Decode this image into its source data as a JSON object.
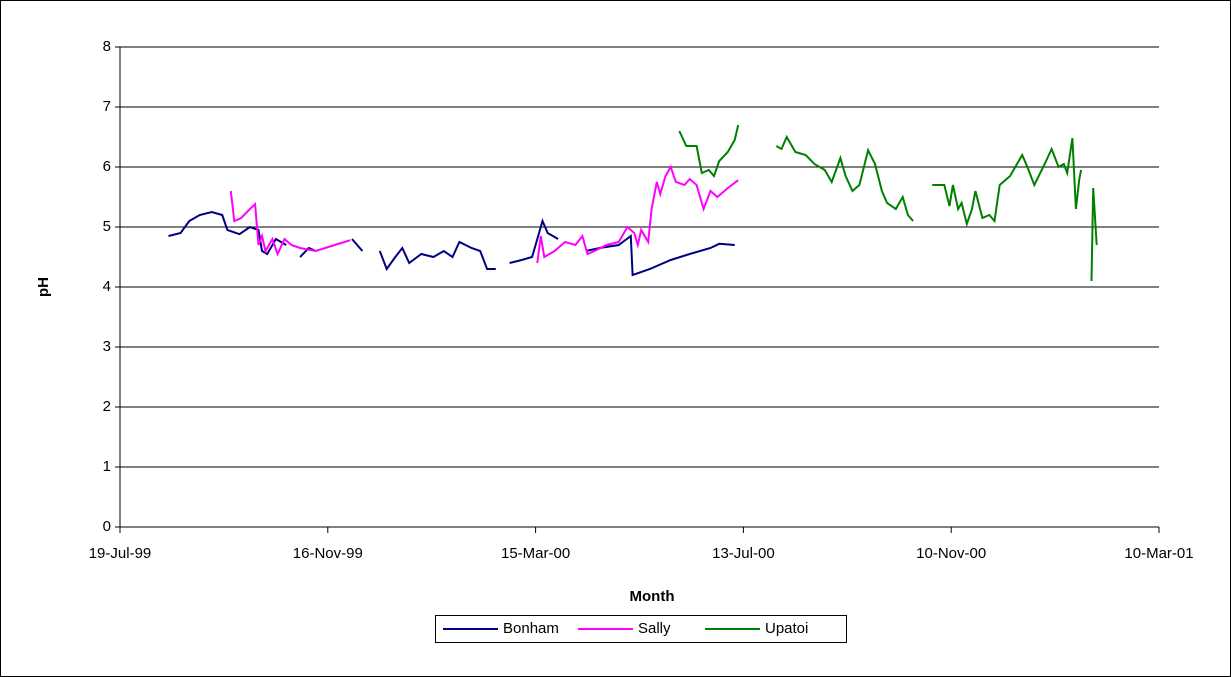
{
  "chart_data": {
    "type": "line",
    "x_label": "Month",
    "y_label": "pH",
    "xlim": [
      "1999-07-19",
      "2001-03-10"
    ],
    "xticks": [
      {
        "value": "1999-07-19",
        "label": "19-Jul-99"
      },
      {
        "value": "1999-11-16",
        "label": "16-Nov-99"
      },
      {
        "value": "2000-03-15",
        "label": "15-Mar-00"
      },
      {
        "value": "2000-07-13",
        "label": "13-Jul-00"
      },
      {
        "value": "2000-11-10",
        "label": "10-Nov-00"
      },
      {
        "value": "2001-03-10",
        "label": "10-Mar-01"
      }
    ],
    "ylim": [
      0,
      8
    ],
    "yticks": [
      0,
      1,
      2,
      3,
      4,
      5,
      6,
      7,
      8
    ],
    "grid": true,
    "legend": "bottom",
    "series": [
      {
        "name": "Bonham",
        "color": "#000080",
        "x": [
          "1999-08-16",
          "1999-08-23",
          "1999-08-28",
          "1999-09-03",
          "1999-09-10",
          "1999-09-16",
          "1999-09-19",
          "1999-09-26",
          "1999-10-02",
          "1999-10-07",
          "1999-10-09",
          "1999-10-12",
          "1999-10-17",
          "1999-10-23",
          null,
          "1999-10-31",
          "1999-11-05",
          "1999-11-09",
          null,
          "1999-11-30",
          "1999-12-06",
          null,
          "1999-12-16",
          "1999-12-20",
          "1999-12-25",
          "1999-12-29",
          "2000-01-02",
          "2000-01-09",
          "2000-01-16",
          "2000-01-22",
          "2000-01-27",
          "2000-01-31",
          "2000-02-07",
          "2000-02-12",
          "2000-02-16",
          "2000-02-21",
          null,
          "2000-02-29",
          "2000-03-07",
          "2000-03-13",
          "2000-03-16",
          "2000-03-19",
          "2000-03-22",
          "2000-03-28",
          null,
          "2000-04-13",
          "2000-04-21",
          "2000-05-02",
          "2000-05-09",
          "2000-05-10",
          "2000-05-20",
          "2000-06-01",
          "2000-06-12",
          "2000-06-24",
          "2000-06-29",
          "2000-07-08"
        ],
        "values": [
          4.85,
          4.9,
          5.1,
          5.2,
          5.25,
          5.2,
          4.95,
          4.88,
          5.0,
          4.95,
          4.6,
          4.55,
          4.8,
          4.7,
          null,
          4.5,
          4.65,
          4.6,
          null,
          4.8,
          4.6,
          null,
          4.6,
          4.3,
          4.5,
          4.65,
          4.4,
          4.55,
          4.5,
          4.6,
          4.5,
          4.75,
          4.65,
          4.6,
          4.3,
          4.3,
          null,
          4.4,
          4.45,
          4.5,
          4.8,
          5.1,
          4.9,
          4.8,
          null,
          4.6,
          4.65,
          4.7,
          4.85,
          4.2,
          4.3,
          4.45,
          4.55,
          4.65,
          4.72,
          4.7
        ]
      },
      {
        "name": "Sally",
        "color": "#ff00ff",
        "x": [
          "1999-09-21",
          "1999-09-23",
          "1999-09-27",
          "1999-10-02",
          "1999-10-05",
          "1999-10-07",
          "1999-10-09",
          "1999-10-11",
          "1999-10-15",
          "1999-10-18",
          "1999-10-22",
          "1999-10-26",
          "1999-10-31",
          "1999-11-09",
          "1999-11-20",
          "1999-11-29",
          null,
          "2000-03-16",
          "2000-03-18",
          "2000-03-20",
          "2000-03-26",
          "2000-04-01",
          "2000-04-07",
          "2000-04-11",
          "2000-04-14",
          "2000-04-18",
          "2000-04-25",
          "2000-05-02",
          "2000-05-07",
          "2000-05-11",
          "2000-05-13",
          "2000-05-15",
          "2000-05-19",
          "2000-05-21",
          "2000-05-24",
          "2000-05-26",
          "2000-05-29",
          "2000-06-01",
          "2000-06-04",
          "2000-06-09",
          "2000-06-12",
          "2000-06-16",
          "2000-06-20",
          "2000-06-24",
          "2000-06-28",
          "2000-07-04",
          "2000-07-10"
        ],
        "values": [
          5.6,
          5.1,
          5.15,
          5.3,
          5.38,
          4.7,
          4.85,
          4.6,
          4.8,
          4.55,
          4.8,
          4.7,
          4.65,
          4.6,
          4.7,
          4.78,
          null,
          4.4,
          4.85,
          4.5,
          4.6,
          4.75,
          4.7,
          4.85,
          4.55,
          4.6,
          4.7,
          4.75,
          5.0,
          4.9,
          4.7,
          4.95,
          4.75,
          5.3,
          5.75,
          5.55,
          5.85,
          6.0,
          5.75,
          5.7,
          5.8,
          5.7,
          5.3,
          5.6,
          5.5,
          5.65,
          5.78
        ]
      },
      {
        "name": "Upatoi",
        "color": "#008000",
        "x": [
          "2000-06-06",
          "2000-06-10",
          "2000-06-16",
          "2000-06-19",
          "2000-06-23",
          "2000-06-26",
          "2000-06-29",
          "2000-07-04",
          "2000-07-08",
          "2000-07-10",
          null,
          "2000-08-01",
          "2000-08-04",
          "2000-08-07",
          "2000-08-12",
          "2000-08-18",
          "2000-08-23",
          "2000-08-29",
          "2000-09-02",
          "2000-09-07",
          "2000-09-10",
          "2000-09-14",
          "2000-09-18",
          "2000-09-23",
          "2000-09-27",
          "2000-10-01",
          "2000-10-04",
          "2000-10-09",
          "2000-10-13",
          "2000-10-16",
          "2000-10-19",
          null,
          "2000-10-30",
          "2000-11-06",
          "2000-11-09",
          "2000-11-11",
          "2000-11-14",
          "2000-11-16",
          "2000-11-19",
          "2000-11-22",
          "2000-11-24",
          "2000-11-28",
          "2000-12-02",
          "2000-12-05",
          "2000-12-08",
          "2000-12-14",
          "2000-12-18",
          "2000-12-21",
          "2000-12-24",
          "2000-12-28",
          "2001-01-03",
          "2001-01-07",
          "2001-01-11",
          "2001-01-14",
          "2001-01-16",
          "2001-01-19",
          "2001-01-21",
          "2001-01-23",
          "2001-01-24",
          null,
          "2001-01-30",
          "2001-01-31",
          "2001-02-02"
        ],
        "values": [
          6.6,
          6.35,
          6.35,
          5.9,
          5.95,
          5.85,
          6.1,
          6.25,
          6.45,
          6.7,
          null,
          6.35,
          6.3,
          6.5,
          6.25,
          6.2,
          6.05,
          5.95,
          5.75,
          6.15,
          5.85,
          5.6,
          5.7,
          6.28,
          6.05,
          5.6,
          5.4,
          5.3,
          5.5,
          5.2,
          5.1,
          null,
          5.7,
          5.7,
          5.35,
          5.7,
          5.3,
          5.4,
          5.05,
          5.3,
          5.6,
          5.15,
          5.2,
          5.1,
          5.7,
          5.85,
          6.05,
          6.2,
          6.0,
          5.7,
          6.05,
          6.3,
          6.0,
          6.05,
          5.9,
          6.48,
          5.3,
          5.8,
          5.95,
          null,
          4.1,
          5.65,
          4.7
        ]
      }
    ]
  }
}
